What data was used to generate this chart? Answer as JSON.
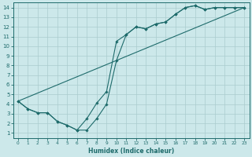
{
  "xlabel": "Humidex (Indice chaleur)",
  "xlim": [
    -0.5,
    23.5
  ],
  "ylim": [
    0.5,
    14.5
  ],
  "xticks": [
    0,
    1,
    2,
    3,
    4,
    5,
    6,
    7,
    8,
    9,
    10,
    11,
    12,
    13,
    14,
    15,
    16,
    17,
    18,
    19,
    20,
    21,
    22,
    23
  ],
  "yticks": [
    1,
    2,
    3,
    4,
    5,
    6,
    7,
    8,
    9,
    10,
    11,
    12,
    13,
    14
  ],
  "background_color": "#cce8ea",
  "grid_color": "#aaccce",
  "line_color": "#1e6b6b",
  "line1_x": [
    0,
    1,
    2,
    3,
    4,
    5,
    6,
    7,
    8,
    9,
    10,
    11,
    12,
    13,
    14,
    15,
    16,
    17,
    18,
    19,
    20,
    21,
    22,
    23
  ],
  "line1_y": [
    4.3,
    3.5,
    3.1,
    3.1,
    2.2,
    1.8,
    1.3,
    1.3,
    2.5,
    4.0,
    8.5,
    11.2,
    12.0,
    11.8,
    12.3,
    12.5,
    13.3,
    14.0,
    14.2,
    13.8,
    14.0,
    14.0,
    14.0,
    14.0
  ],
  "line2_x": [
    0,
    1,
    2,
    3,
    4,
    5,
    6,
    7,
    8,
    9,
    10,
    11,
    12,
    13,
    14,
    15,
    16,
    17,
    18,
    19,
    20,
    21,
    22,
    23
  ],
  "line2_y": [
    4.3,
    3.5,
    3.1,
    3.1,
    2.2,
    1.8,
    1.3,
    2.5,
    4.1,
    5.3,
    10.5,
    11.2,
    12.0,
    11.8,
    12.3,
    12.5,
    13.3,
    14.0,
    14.2,
    13.8,
    14.0,
    14.0,
    14.0,
    14.0
  ],
  "line3_x": [
    0,
    23
  ],
  "line3_y": [
    4.3,
    14.0
  ],
  "figsize": [
    3.2,
    2.0
  ],
  "dpi": 100
}
